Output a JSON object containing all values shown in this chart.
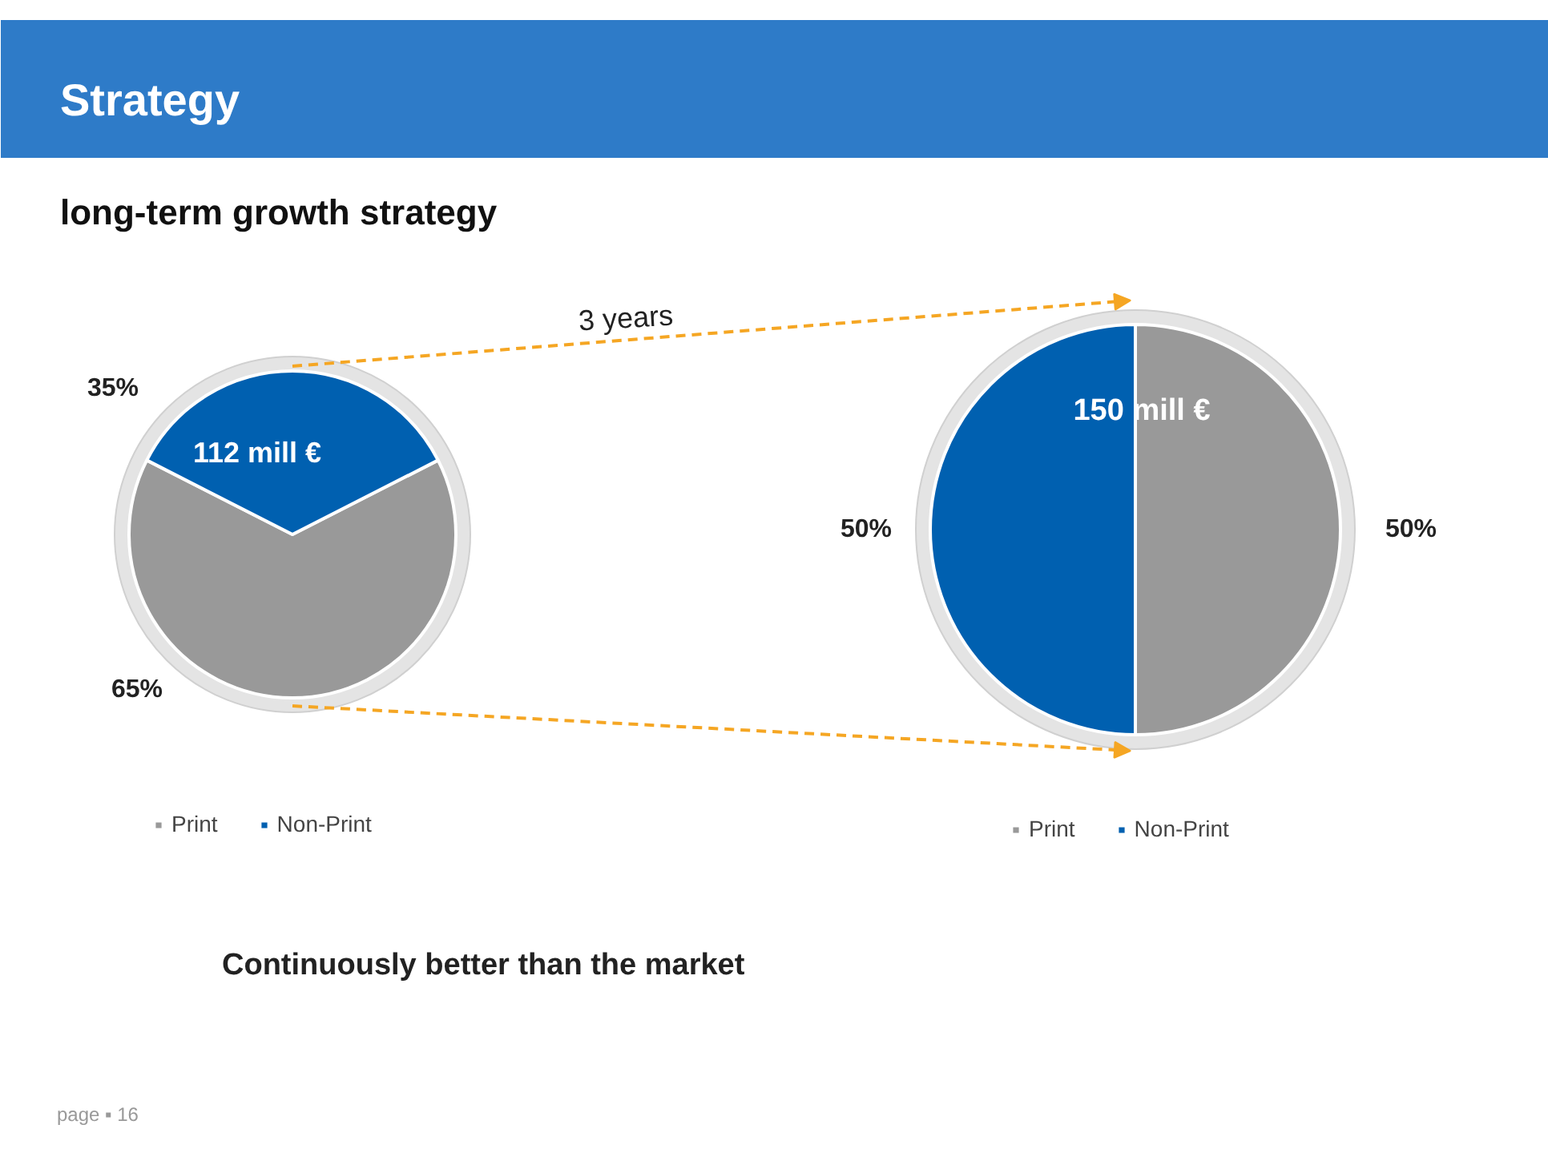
{
  "chart_data": [
    {
      "type": "pie",
      "title": "Strategy",
      "subtitle": "long-term growth strategy",
      "categories": [
        "Print",
        "Non-Print"
      ],
      "values": [
        65,
        35
      ],
      "colors": [
        "#999999",
        "#0060b0"
      ],
      "value_labels": [
        "65%",
        "35%"
      ],
      "legend": "bottom",
      "annotations": [
        "112 mill €",
        "3 years",
        "Continuously better than the market",
        "page ▪ 16"
      ]
    },
    {
      "type": "pie",
      "categories": [
        "Print",
        "Non-Print"
      ],
      "values": [
        50,
        50
      ],
      "colors": [
        "#999999",
        "#0060b0"
      ],
      "value_labels": [
        "50%",
        "50%"
      ],
      "legend": "bottom",
      "annotations": [
        "150 mill €"
      ]
    }
  ]
}
